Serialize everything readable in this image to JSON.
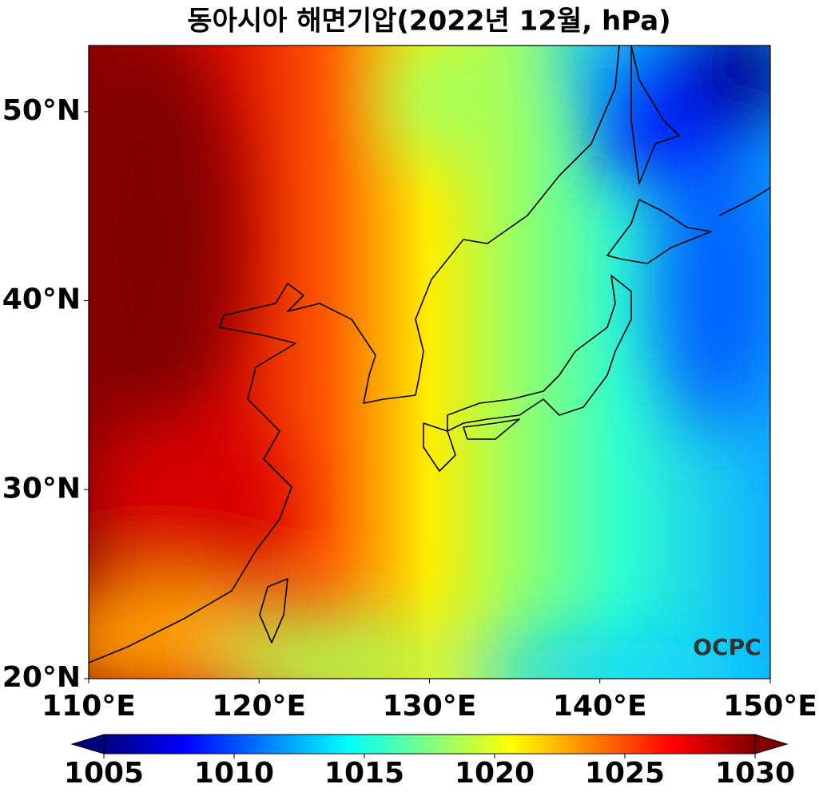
{
  "map": {
    "title": "동아시아 해면기압(2022년 12월, hPa)",
    "xlim": [
      110,
      150
    ],
    "ylim": [
      20,
      53.5
    ],
    "xticks": [
      {
        "value": 110,
        "label": "110°E"
      },
      {
        "value": 120,
        "label": "120°E"
      },
      {
        "value": 130,
        "label": "130°E"
      },
      {
        "value": 140,
        "label": "140°E"
      },
      {
        "value": 150,
        "label": "150°E"
      }
    ],
    "yticks": [
      {
        "value": 20,
        "label": "20°N"
      },
      {
        "value": 30,
        "label": "30°N"
      },
      {
        "value": 40,
        "label": "40°N"
      },
      {
        "value": 50,
        "label": "50°N"
      }
    ],
    "watermark": "OCPC",
    "colorbar": {
      "lim": [
        1005,
        1030
      ],
      "ticks": [
        1005,
        1010,
        1015,
        1020,
        1025,
        1030
      ]
    }
  }
}
